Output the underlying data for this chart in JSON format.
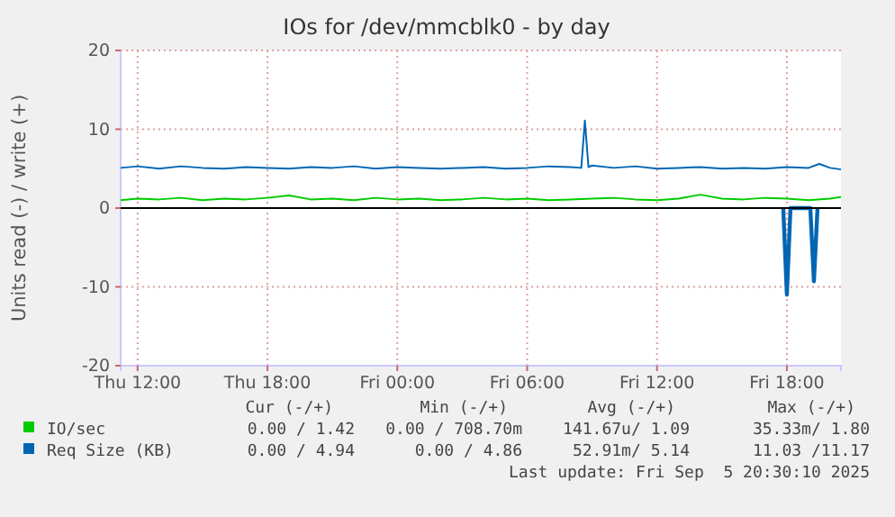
{
  "chart_data": {
    "type": "line",
    "title": "IOs for /dev/mmcblk0 - by day",
    "ylabel": "Units read (-) / write (+)",
    "xlim": [
      "2025-09-04T11:13",
      "2025-09-05T20:30"
    ],
    "xticks": [
      {
        "value": "2025-09-04T12:00",
        "label": "Thu 12:00"
      },
      {
        "value": "2025-09-04T18:00",
        "label": "Thu 18:00"
      },
      {
        "value": "2025-09-05T00:00",
        "label": "Fri 00:00"
      },
      {
        "value": "2025-09-05T06:00",
        "label": "Fri 06:00"
      },
      {
        "value": "2025-09-05T12:00",
        "label": "Fri 12:00"
      },
      {
        "value": "2025-09-05T18:00",
        "label": "Fri 18:00"
      }
    ],
    "ylim": [
      -20,
      20
    ],
    "yticks": [
      -20,
      -10,
      0,
      10,
      20
    ],
    "grid": true,
    "legend": "bottom",
    "ref_lines": [
      {
        "axis": "y",
        "value": 0,
        "color": "#000000"
      }
    ],
    "series": [
      {
        "name": "IO/sec",
        "color": "#00cc00",
        "x": [
          "2025-09-04T11:13",
          "2025-09-04T12:00",
          "2025-09-04T13:00",
          "2025-09-04T14:00",
          "2025-09-04T15:00",
          "2025-09-04T16:00",
          "2025-09-04T17:00",
          "2025-09-04T18:00",
          "2025-09-04T19:00",
          "2025-09-04T20:00",
          "2025-09-04T21:00",
          "2025-09-04T22:00",
          "2025-09-04T23:00",
          "2025-09-05T00:00",
          "2025-09-05T01:00",
          "2025-09-05T02:00",
          "2025-09-05T03:00",
          "2025-09-05T04:00",
          "2025-09-05T05:00",
          "2025-09-05T06:00",
          "2025-09-05T07:00",
          "2025-09-05T08:00",
          "2025-09-05T09:00",
          "2025-09-05T10:00",
          "2025-09-05T11:00",
          "2025-09-05T12:00",
          "2025-09-05T13:00",
          "2025-09-05T14:00",
          "2025-09-05T15:00",
          "2025-09-05T16:00",
          "2025-09-05T17:00",
          "2025-09-05T18:00",
          "2025-09-05T19:00",
          "2025-09-05T20:00",
          "2025-09-05T20:30"
        ],
        "values": [
          1.0,
          1.2,
          1.1,
          1.3,
          1.0,
          1.2,
          1.1,
          1.3,
          1.6,
          1.1,
          1.2,
          1.0,
          1.3,
          1.1,
          1.2,
          1.0,
          1.1,
          1.3,
          1.1,
          1.2,
          1.0,
          1.1,
          1.2,
          1.3,
          1.1,
          1.0,
          1.2,
          1.7,
          1.2,
          1.1,
          1.3,
          1.2,
          1.0,
          1.2,
          1.4
        ]
      },
      {
        "name": "Req Size (KB)",
        "color": "#0066b3",
        "x": [
          "2025-09-04T11:13",
          "2025-09-04T12:00",
          "2025-09-04T13:00",
          "2025-09-04T14:00",
          "2025-09-04T15:00",
          "2025-09-04T16:00",
          "2025-09-04T17:00",
          "2025-09-04T18:00",
          "2025-09-04T19:00",
          "2025-09-04T20:00",
          "2025-09-04T21:00",
          "2025-09-04T22:00",
          "2025-09-04T23:00",
          "2025-09-05T00:00",
          "2025-09-05T01:00",
          "2025-09-05T02:00",
          "2025-09-05T03:00",
          "2025-09-05T04:00",
          "2025-09-05T05:00",
          "2025-09-05T06:00",
          "2025-09-05T07:00",
          "2025-09-05T08:00",
          "2025-09-05T08:30",
          "2025-09-05T08:40",
          "2025-09-05T08:50",
          "2025-09-05T09:00",
          "2025-09-05T10:00",
          "2025-09-05T11:00",
          "2025-09-05T12:00",
          "2025-09-05T13:00",
          "2025-09-05T14:00",
          "2025-09-05T15:00",
          "2025-09-05T16:00",
          "2025-09-05T17:00",
          "2025-09-05T18:00",
          "2025-09-05T19:00",
          "2025-09-05T19:30",
          "2025-09-05T20:00",
          "2025-09-05T20:30"
        ],
        "values": [
          5.1,
          5.3,
          5.0,
          5.3,
          5.1,
          5.0,
          5.2,
          5.1,
          5.0,
          5.2,
          5.1,
          5.3,
          5.0,
          5.2,
          5.1,
          5.0,
          5.1,
          5.2,
          5.0,
          5.1,
          5.3,
          5.2,
          5.1,
          11.1,
          5.2,
          5.4,
          5.1,
          5.3,
          5.0,
          5.1,
          5.2,
          5.0,
          5.1,
          5.0,
          5.2,
          5.1,
          5.6,
          5.1,
          4.9
        ]
      },
      {
        "color": "#0066b3",
        "x": [
          "2025-09-05T17:50",
          "2025-09-05T18:00",
          "2025-09-05T18:10",
          "2025-09-05T19:05",
          "2025-09-05T19:15",
          "2025-09-05T19:25"
        ],
        "values": [
          0,
          -11.0,
          0,
          0,
          -9.3,
          0
        ]
      }
    ],
    "annotations": [
      "Cur (-/+)",
      "Min (-/+)",
      "Avg (-/+)",
      "Max (-/+)",
      "0.00 / 1.42",
      "0.00 / 708.70m",
      "141.67u/ 1.09",
      "35.33m/ 1.80",
      "0.00 / 4.94",
      "0.00 / 4.86",
      "52.91m/ 5.14",
      "11.03 /11.17",
      "Last update: Fri Sep  5 20:30:10 2025"
    ]
  }
}
